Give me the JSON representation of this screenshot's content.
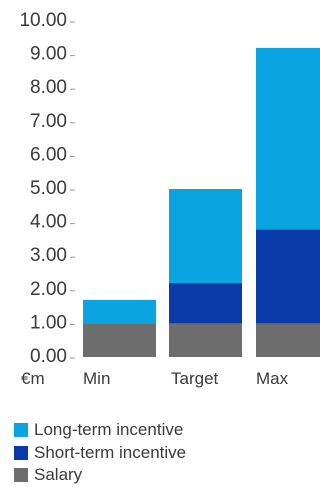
{
  "chart_data": {
    "type": "bar",
    "stacked": true,
    "unit_label": "€m",
    "categories": [
      "Min",
      "Target",
      "Max"
    ],
    "series": [
      {
        "name": "Salary",
        "color": "#6d6d6d",
        "values": [
          1.0,
          1.0,
          1.0
        ]
      },
      {
        "name": "Short-term incentive",
        "color": "#0a3aa8",
        "values": [
          0.0,
          1.2,
          2.8
        ]
      },
      {
        "name": "Long-term incentive",
        "color": "#0aa4e0",
        "values": [
          0.7,
          2.8,
          5.4
        ]
      }
    ],
    "ylim": [
      0,
      10
    ],
    "yticks": [
      "0.00",
      "1.00",
      "2.00",
      "3.00",
      "4.00",
      "5.00",
      "6.00",
      "7.00",
      "8.00",
      "9.00",
      "10.00"
    ],
    "grid": false,
    "legend_position": "bottom-left"
  },
  "legend": {
    "items": [
      {
        "label": "Long-term incentive",
        "color": "#0aa4e0"
      },
      {
        "label": "Short-term incentive",
        "color": "#0a3aa8"
      },
      {
        "label": "Salary",
        "color": "#6d6d6d"
      }
    ]
  }
}
